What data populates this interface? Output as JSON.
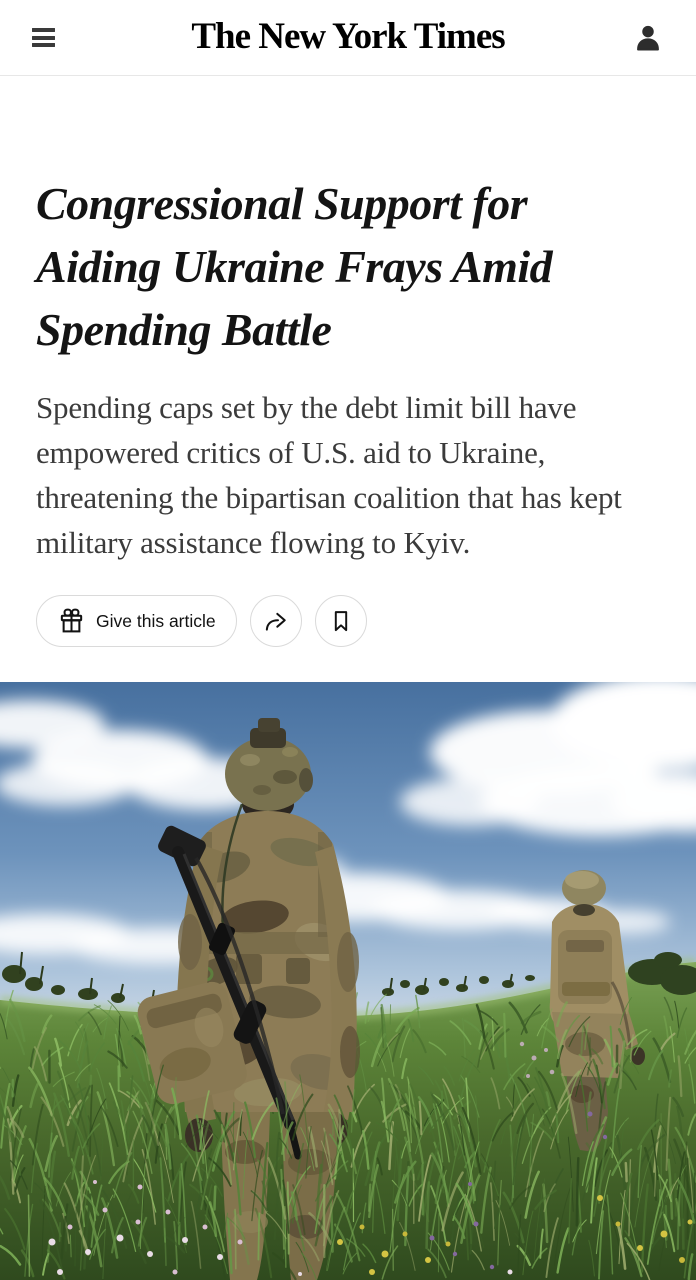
{
  "header": {
    "logo_text": "The New York Times"
  },
  "article": {
    "headline": "Congressional Support for Aiding Ukraine Frays Amid Spending Battle",
    "summary": "Spending caps set by the debt limit bill have empowered critics of U.S. aid to Ukraine, threatening the bipartisan coalition that has kept military assistance flowing to Kyiv.",
    "actions": {
      "give_label": "Give this article"
    },
    "photo": {
      "alt": "Two soldiers in camouflage uniforms carrying rifles and packs walk away through a field of tall green grass and wildflowers under a blue sky with white clouds."
    }
  },
  "icons": {
    "menu": "hamburger-icon",
    "account": "person-icon",
    "give": "gift-icon",
    "share": "share-arrow-icon",
    "save": "bookmark-icon"
  },
  "colors": {
    "text_primary": "#141414",
    "text_secondary": "#3b3b3b",
    "button_border": "#dadada",
    "header_border": "#e7e7e7",
    "sky_top": "#47709f",
    "sky_horizon": "#cdd9e6",
    "grass_light": "#7aa155",
    "grass_dark": "#2f4a1e",
    "camo_tan": "#8d7c56"
  }
}
